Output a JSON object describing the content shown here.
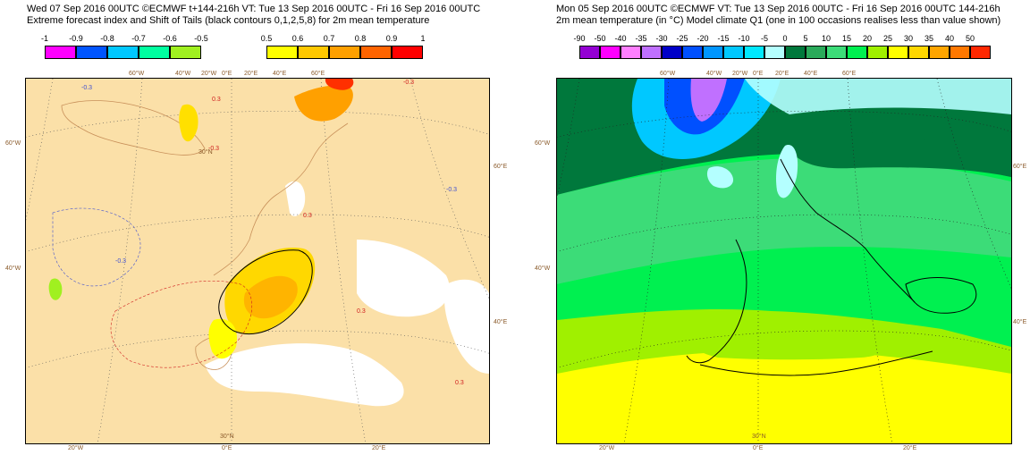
{
  "left_panel": {
    "title_line1": "Wed 07 Sep 2016 00UTC ©ECMWF t+144-216h  VT: Tue 13 Sep 2016 00UTC - Fri 16 Sep 2016 00UTC",
    "title_line2": "Extreme forecast index and Shift of Tails (black contours 0,1,2,5,8) for 2m mean temperature",
    "legend_neg": {
      "labels": [
        "-1",
        "-0.9",
        "-0.8",
        "-0.7",
        "-0.6",
        "-0.5"
      ],
      "colors": [
        "#ff00ff",
        "#0055ff",
        "#00c8ff",
        "#00ffa0",
        "#a0f020"
      ]
    },
    "legend_pos": {
      "labels": [
        "0.5",
        "0.6",
        "0.7",
        "0.8",
        "0.9",
        "1"
      ],
      "colors": [
        "#ffff00",
        "#ffc800",
        "#ffa000",
        "#ff6400",
        "#ff0000"
      ]
    },
    "contour_labels": [
      "-0.3",
      "-0.3",
      "0.3",
      "-0.3",
      "-0.3",
      "0.3",
      "-0.3",
      "0.3",
      "0.3"
    ],
    "lon_labels_top": [
      "60°W",
      "40°W",
      "20°W",
      "0°E",
      "20°E",
      "40°E",
      "60°E"
    ],
    "lon_labels_bottom": [
      "20°W",
      "0°E",
      "20°E"
    ],
    "lat_labels_left": [
      "60°W",
      "40°W"
    ],
    "lat_labels_right": [
      "60°E",
      "40°E"
    ],
    "lat_labels_inner": [
      "30°N",
      "30°N"
    ]
  },
  "right_panel": {
    "title_line1": "Mon 05 Sep 2016 00UTC ©ECMWF VT: Tue 13 Sep 2016 00UTC - Fri 16 Sep 2016 00UTC   144-216h",
    "title_line2": "2m mean temperature (in °C)  Model climate Q1 (one in 100 occasions realises less than value shown)",
    "legend": {
      "labels": [
        "-90",
        "-50",
        "-40",
        "-35",
        "-30",
        "-25",
        "-20",
        "-15",
        "-10",
        "-5",
        "0",
        "5",
        "10",
        "15",
        "20",
        "25",
        "30",
        "35",
        "40",
        "50"
      ],
      "colors": [
        "#9400d3",
        "#ff00ff",
        "#ff7fff",
        "#c070ff",
        "#0000c8",
        "#0050ff",
        "#0096ff",
        "#00c8ff",
        "#00e8ff",
        "#b4ffff",
        "#00783c",
        "#2aaa5a",
        "#3cdc78",
        "#00f050",
        "#a0f000",
        "#ffff00",
        "#ffd700",
        "#ffa500",
        "#ff7800",
        "#ff2800"
      ]
    },
    "lon_labels_top": [
      "60°W",
      "40°W",
      "20°W",
      "0°E",
      "20°E",
      "40°E",
      "60°E"
    ],
    "lon_labels_bottom": [
      "20°W",
      "0°E",
      "20°E"
    ],
    "lat_labels_left": [
      "60°W",
      "40°W"
    ],
    "lat_labels_right": [
      "60°E",
      "40°E"
    ],
    "lat_labels_inner": [
      "30°N"
    ]
  }
}
